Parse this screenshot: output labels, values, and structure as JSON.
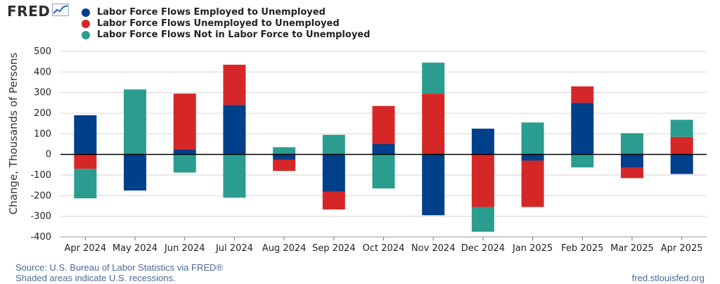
{
  "header": {
    "logo_text": "FRED",
    "logo_icon": "line-chart-icon"
  },
  "chart_data": {
    "type": "bar",
    "stacked": true,
    "title": "",
    "xlabel": "",
    "ylabel": "Change, Thousands of Persons",
    "ylim": [
      -400,
      500
    ],
    "yticks": [
      -400,
      -300,
      -200,
      -100,
      0,
      100,
      200,
      300,
      400,
      500
    ],
    "grid": true,
    "legend_position": "top",
    "categories": [
      "Apr 2024",
      "May 2024",
      "Jun 2024",
      "Jul 2024",
      "Aug 2024",
      "Sep 2024",
      "Oct 2024",
      "Nov 2024",
      "Dec 2024",
      "Jan 2025",
      "Feb 2025",
      "Mar 2025",
      "Apr 2025"
    ],
    "series": [
      {
        "name": "Labor Force Flows Employed to Unemployed",
        "color": "#003f8a",
        "values": [
          190,
          -175,
          25,
          240,
          -25,
          -180,
          50,
          -295,
          125,
          -30,
          250,
          -65,
          -95
        ]
      },
      {
        "name": "Labor Force Flows Unemployed to Unemployed",
        "color": "#d62728",
        "values": [
          -70,
          5,
          270,
          195,
          -55,
          -87,
          185,
          295,
          -255,
          -225,
          80,
          -50,
          85
        ]
      },
      {
        "name": "Labor Force Flows Not in Labor Force to Unemployed",
        "color": "#2a9d8f",
        "values": [
          -143,
          310,
          -88,
          -210,
          35,
          95,
          -165,
          150,
          -120,
          155,
          -63,
          103,
          83
        ]
      }
    ]
  },
  "footer": {
    "source": "Source: U.S. Bureau of Labor Statistics via FRED®",
    "recessions": "Shaded areas indicate U.S. recessions.",
    "site": "fred.stlouisfed.org"
  }
}
